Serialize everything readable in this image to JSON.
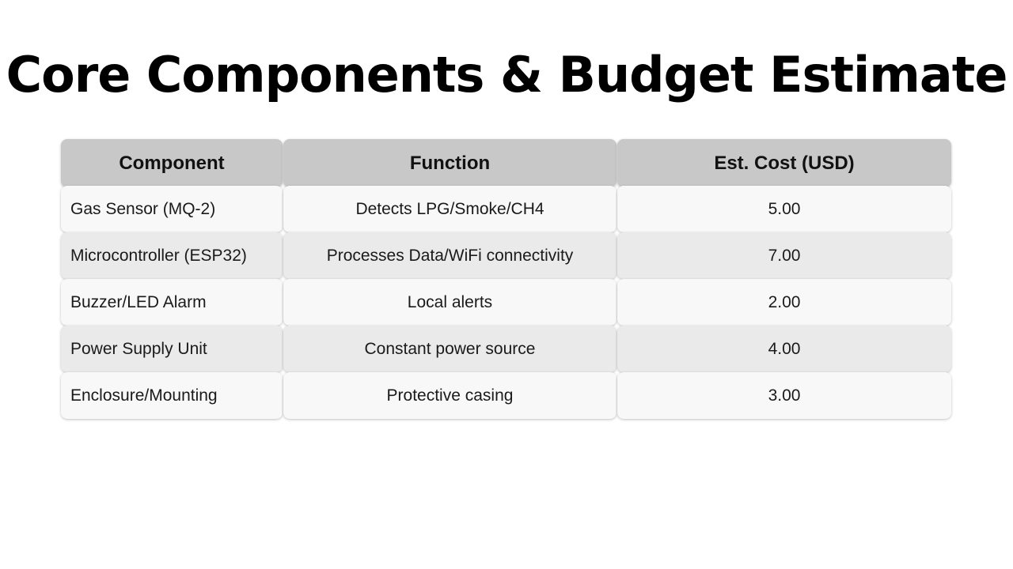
{
  "title": "Core Components & Budget Estimate",
  "table": {
    "headers": [
      "Component",
      "Function",
      "Est. Cost (USD)"
    ],
    "rows": [
      {
        "component": "Gas Sensor (MQ-2)",
        "function": "Detects LPG/Smoke/CH4",
        "cost": "5.00"
      },
      {
        "component": "Microcontroller (ESP32)",
        "function": "Processes Data/WiFi connectivity",
        "cost": "7.00"
      },
      {
        "component": "Buzzer/LED Alarm",
        "function": "Local alerts",
        "cost": "2.00"
      },
      {
        "component": "Power Supply Unit",
        "function": "Constant power source",
        "cost": "4.00"
      },
      {
        "component": "Enclosure/Mounting",
        "function": "Protective casing",
        "cost": "3.00"
      }
    ]
  },
  "colors": {
    "header_bg": "#c8c8c8",
    "row_light": "#f8f8f8",
    "row_dark": "#eaeaea"
  }
}
